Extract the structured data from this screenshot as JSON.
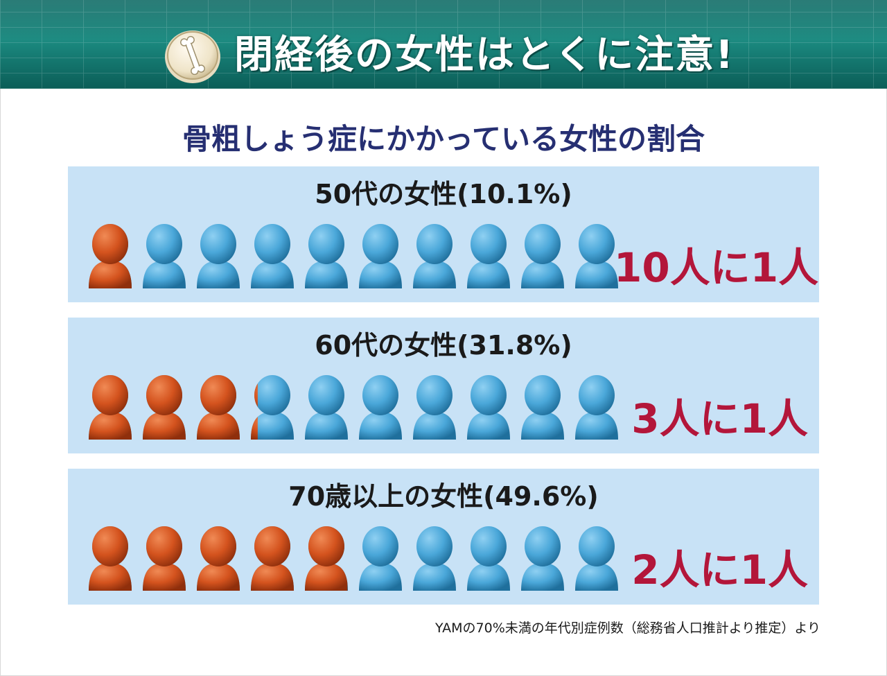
{
  "header": {
    "title": "閉経後の女性はとくに注意!",
    "badge_icon": "bone-icon"
  },
  "chart_data": {
    "type": "pictogram",
    "title": "骨粗しょう症にかかっている女性の割合",
    "icon": "person-icon",
    "icons_per_row": 10,
    "colors": {
      "affected": "#d4531e",
      "unaffected": "#4aa7d9",
      "panel_bg": "#c8e2f6",
      "ratio_text": "#b3163a"
    },
    "groups": [
      {
        "label": "50代の女性(10.1%)",
        "percent": 10.1,
        "ratio": "10人に1人"
      },
      {
        "label": "60代の女性(31.8%)",
        "percent": 31.8,
        "ratio": "3人に1人"
      },
      {
        "label": "70歳以上の女性(49.6%)",
        "percent": 49.6,
        "ratio": "2人に1人"
      }
    ],
    "source": "YAMの70%未満の年代別症例数（総務省人口推計より推定）より"
  }
}
